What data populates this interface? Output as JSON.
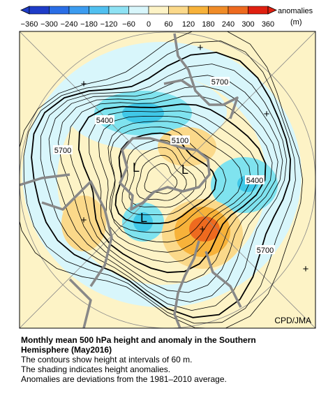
{
  "colorbar": {
    "ticks": [
      "−360",
      "−300",
      "−240",
      "−180",
      "−120",
      "−60",
      "0",
      "60",
      "120",
      "180",
      "240",
      "300",
      "360"
    ],
    "label": "anomalies",
    "unit": "(m)"
  },
  "map": {
    "contour_labels": [
      {
        "text": "5700"
      },
      {
        "text": "5400"
      },
      {
        "text": "5100"
      },
      {
        "text": "5700"
      },
      {
        "text": "5400"
      },
      {
        "text": "5700"
      }
    ],
    "lows": [
      "L",
      "L",
      "L"
    ],
    "markers": [
      "+",
      "+",
      "+",
      "+",
      "+",
      "+"
    ],
    "credit": "CPD/JMA"
  },
  "caption": {
    "title_lines": [
      "Monthly mean 500 hPa height and anomaly in the Southern",
      "Hemisphere (May2016)"
    ],
    "lines": [
      "The contours show height at intervals of 60 m.",
      "The shading indicates height anomalies.",
      "Anomalies are deviations from the 1981–2010 average."
    ]
  }
}
